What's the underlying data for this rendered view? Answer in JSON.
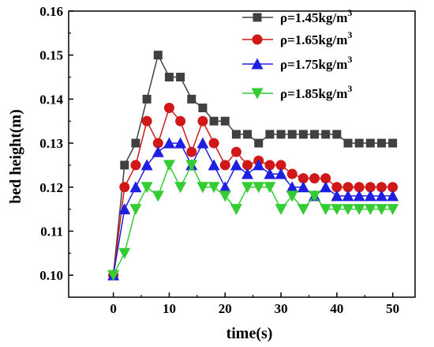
{
  "chart_data": {
    "type": "line",
    "xlabel": "time(s)",
    "ylabel": "bed height(m)",
    "xlim": [
      -8,
      54
    ],
    "ylim": [
      0.095,
      0.16
    ],
    "xticks": [
      0,
      10,
      20,
      30,
      40,
      50
    ],
    "yticks": [
      0.1,
      0.11,
      0.12,
      0.13,
      0.14,
      0.15,
      0.16
    ],
    "ytick_labels": [
      "0.10",
      "0.11",
      "0.12",
      "0.13",
      "0.14",
      "0.15",
      "0.16"
    ],
    "grid": false,
    "legend_position": "top-right",
    "x": [
      0,
      2,
      4,
      6,
      8,
      10,
      12,
      14,
      16,
      18,
      20,
      22,
      24,
      26,
      28,
      30,
      32,
      34,
      36,
      38,
      40,
      42,
      44,
      46,
      48,
      50
    ],
    "series": [
      {
        "name": "ρ=1.45kg/m",
        "superscript": "3",
        "color": "#404040",
        "marker": "square",
        "values": [
          0.1,
          0.125,
          0.13,
          0.14,
          0.15,
          0.145,
          0.145,
          0.14,
          0.138,
          0.135,
          0.135,
          0.132,
          0.132,
          0.13,
          0.132,
          0.132,
          0.132,
          0.132,
          0.132,
          0.132,
          0.132,
          0.13,
          0.13,
          0.13,
          0.13,
          0.13
        ]
      },
      {
        "name": "ρ=1.65kg/m",
        "superscript": "3",
        "color": "#d01818",
        "marker": "circle",
        "values": [
          0.1,
          0.12,
          0.125,
          0.135,
          0.13,
          0.138,
          0.135,
          0.128,
          0.135,
          0.13,
          0.125,
          0.128,
          0.125,
          0.126,
          0.125,
          0.125,
          0.123,
          0.122,
          0.122,
          0.122,
          0.12,
          0.12,
          0.12,
          0.12,
          0.12,
          0.12
        ]
      },
      {
        "name": "ρ=1.75kg/m",
        "superscript": "3",
        "color": "#1f1fe0",
        "marker": "triangle-up",
        "values": [
          0.1,
          0.115,
          0.12,
          0.125,
          0.128,
          0.13,
          0.13,
          0.125,
          0.13,
          0.125,
          0.12,
          0.125,
          0.123,
          0.125,
          0.123,
          0.123,
          0.12,
          0.12,
          0.118,
          0.12,
          0.118,
          0.118,
          0.118,
          0.118,
          0.118,
          0.118
        ]
      },
      {
        "name": "ρ=1.85kg/m",
        "superscript": "3",
        "color": "#33cc33",
        "marker": "triangle-down",
        "values": [
          0.1,
          0.105,
          0.115,
          0.12,
          0.118,
          0.125,
          0.12,
          0.125,
          0.12,
          0.12,
          0.118,
          0.115,
          0.12,
          0.12,
          0.12,
          0.115,
          0.118,
          0.115,
          0.118,
          0.115,
          0.115,
          0.115,
          0.115,
          0.115,
          0.115,
          0.115
        ]
      }
    ]
  }
}
